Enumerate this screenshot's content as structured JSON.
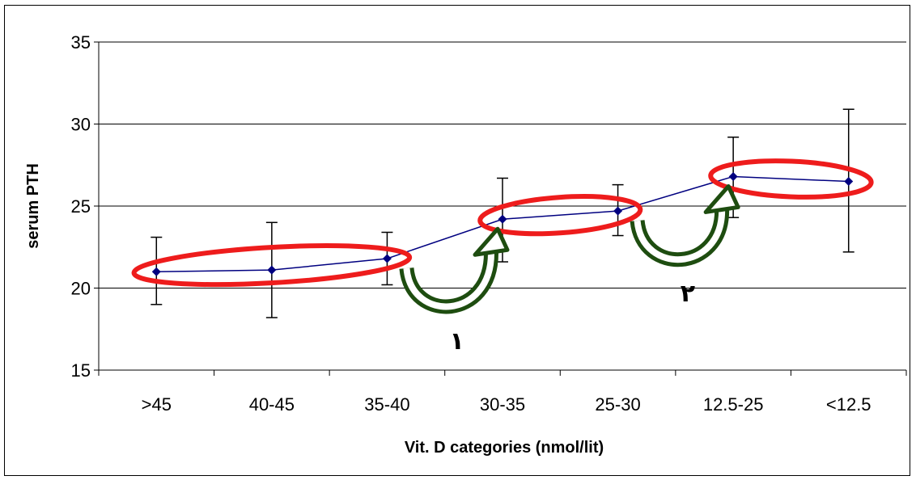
{
  "chart_data": {
    "type": "line",
    "title": "",
    "xlabel": "Vit. D categories (nmol/lit)",
    "ylabel": "serum  PTH",
    "categories": [
      ">45",
      "40-45",
      "35-40",
      "30-35",
      "25-30",
      "12.5-25",
      "<12.5"
    ],
    "values": [
      21.0,
      21.1,
      21.8,
      24.2,
      24.7,
      26.8,
      26.5
    ],
    "error_low": [
      19.0,
      18.2,
      20.2,
      21.6,
      23.2,
      24.3,
      22.2
    ],
    "error_high": [
      23.1,
      24.0,
      23.4,
      26.7,
      26.3,
      29.2,
      30.9
    ],
    "ylim": [
      15,
      35
    ],
    "yticks": [
      15,
      20,
      25,
      30,
      35
    ],
    "grid": true,
    "legend": "none",
    "annotations": [
      {
        "label": "١",
        "from_category": "35-40",
        "to_category": "30-35"
      },
      {
        "label": "٢",
        "from_category": "25-30",
        "to_category": "12.5-25"
      }
    ],
    "highlight_groups": [
      [
        ">45",
        "40-45",
        "35-40"
      ],
      [
        "30-35",
        "25-30"
      ],
      [
        "12.5-25",
        "<12.5"
      ]
    ],
    "colors": {
      "line": "#000080",
      "marker": "#000080",
      "errorbar": "#000000",
      "ellipse": "#ee1c1c",
      "arrow_fill": "#ffffff",
      "arrow_stroke": "#1e4d10"
    }
  }
}
